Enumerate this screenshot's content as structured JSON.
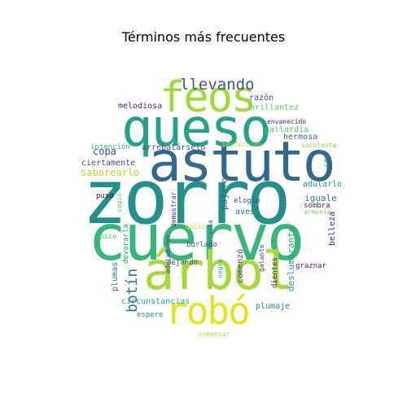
{
  "title": "Términos más frecuentes",
  "words": [
    {
      "text": "zorro",
      "color": "#21918c"
    },
    {
      "text": "cuervo",
      "color": "#35b779"
    },
    {
      "text": "astuto",
      "color": "#31688e"
    },
    {
      "text": "queso",
      "color": "#20a386"
    },
    {
      "text": "árbol",
      "color": "#a5db36"
    },
    {
      "text": "feos",
      "color": "#a0da39"
    },
    {
      "text": "robó",
      "color": "#e6e419"
    },
    {
      "text": "llevando",
      "color": "#3b528b"
    },
    {
      "text": "botín",
      "color": "#2c728e"
    },
    {
      "text": "copa",
      "color": "#3b528b"
    },
    {
      "text": "saborearlo",
      "color": "#b5de2b"
    },
    {
      "text": "melodiosa",
      "color": "#482878"
    },
    {
      "text": "razón",
      "color": "#3e4989"
    },
    {
      "text": "brillantez",
      "color": "#5ec962"
    },
    {
      "text": "envanecido",
      "color": "#481f71"
    },
    {
      "text": "gallardía",
      "color": "#4ac16d"
    },
    {
      "text": "hermosa",
      "color": "#31688e"
    },
    {
      "text": "intención",
      "color": "#38b977"
    },
    {
      "text": "arrebatárselo",
      "color": "#3b528b"
    },
    {
      "text": "perfección",
      "color": "#b5de2b"
    },
    {
      "text": "suculenta",
      "color": "#84d44b"
    },
    {
      "text": "ciertamente",
      "color": "#3e4989"
    },
    {
      "text": "caer",
      "color": "#2c728e"
    },
    {
      "text": "adularlo",
      "color": "#228c8d"
    },
    {
      "text": "iguale",
      "color": "#26828e"
    },
    {
      "text": "sombra",
      "color": "#482475"
    },
    {
      "text": "armonía",
      "color": "#7ad151"
    },
    {
      "text": "belleza",
      "color": "#481a6c"
    },
    {
      "text": "graznar",
      "color": "#481a6c"
    },
    {
      "text": "puso",
      "color": "#440154"
    },
    {
      "text": "cogió",
      "color": "#5ec962"
    },
    {
      "text": "quiso",
      "color": "#d0e11c"
    },
    {
      "text": "pico",
      "color": "#5ec962"
    },
    {
      "text": "devorarla",
      "color": "#1fa188"
    },
    {
      "text": "aduladores",
      "color": "#404688"
    },
    {
      "text": "demostrar",
      "color": "#482878"
    },
    {
      "text": "deseaba",
      "color": "#2a788e"
    },
    {
      "text": "pájaros",
      "color": "#31688e"
    },
    {
      "text": "elogio",
      "color": "#3e4989"
    },
    {
      "text": "presa",
      "color": "#2c728e"
    },
    {
      "text": "aves",
      "color": "#2c728e"
    },
    {
      "text": "comenzó",
      "color": "#433e85"
    },
    {
      "text": "burlado",
      "color": "#35608d"
    },
    {
      "text": "dejando",
      "color": "#414487"
    },
    {
      "text": "cosa",
      "color": "#addc30"
    },
    {
      "text": "negro",
      "color": "#29af7f"
    },
    {
      "text": "galante",
      "color": "#443983"
    },
    {
      "text": "dientes",
      "color": "#481769"
    },
    {
      "text": "deslumbrante",
      "color": "#1f9e89"
    },
    {
      "text": "plumas",
      "color": "#2a788e"
    },
    {
      "text": "circunstancias",
      "color": "#22a884"
    },
    {
      "text": "plumaje",
      "color": "#23898e"
    },
    {
      "text": "espere",
      "color": "#1f9a8a"
    },
    {
      "text": "comenzar",
      "color": "#b5de2b"
    }
  ]
}
